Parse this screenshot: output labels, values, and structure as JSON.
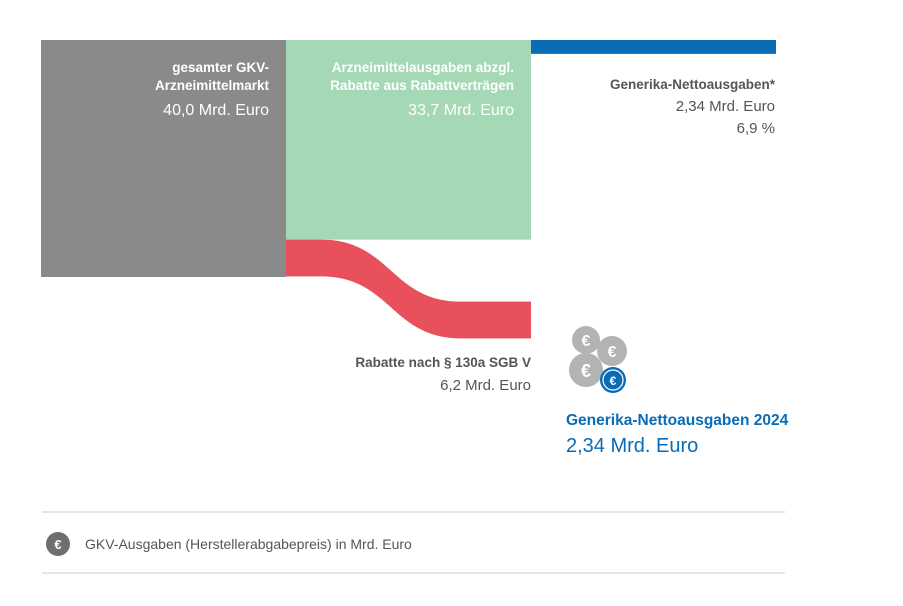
{
  "colors": {
    "gesamt": "#8a8a8a",
    "abzgl": "#a5d8b5",
    "rabatte": "#e8505b",
    "generika": "#0a6cb5",
    "text_dark": "#555555",
    "text_white": "#ffffff",
    "coin_gray": "#b3b3b3",
    "rule": "#cccccc"
  },
  "chart_data": {
    "type": "sankey",
    "unit": "Mrd. Euro",
    "nodes": [
      {
        "id": "gesamt",
        "label_lines": [
          "gesamter GKV-",
          "Arzneimittelmarkt"
        ],
        "value_text": "40,0 Mrd. Euro",
        "value": 40.0
      },
      {
        "id": "abzgl",
        "label_lines": [
          "Arzneimittelausgaben abzgl.",
          "Rabatte aus Rabattverträgen"
        ],
        "value_text": "33,7 Mrd. Euro",
        "value": 33.7
      },
      {
        "id": "rabatte",
        "label": "Rabatte nach § 130a SGB V",
        "value_text": "6,2 Mrd. Euro",
        "value": 6.2
      },
      {
        "id": "generika",
        "label": "Generika-Nettoausgaben*",
        "value_text": "2,34 Mrd. Euro",
        "share_text": "6,9 %",
        "value": 2.34
      }
    ],
    "links": [
      {
        "source": "gesamt",
        "target": "abzgl",
        "value": 33.7
      },
      {
        "source": "gesamt",
        "target": "rabatte",
        "value": 6.2
      },
      {
        "source": "abzgl",
        "target": "generika",
        "value": 2.34
      }
    ]
  },
  "highlight": {
    "icon": "euro-coins-icon",
    "title": "Generika-Nettoausgaben 2024",
    "value_text": "2,34 Mrd. Euro"
  },
  "footer": {
    "icon": "euro-icon",
    "text": "GKV-Ausgaben (Herstellerabgabepreis) in Mrd. Euro"
  }
}
